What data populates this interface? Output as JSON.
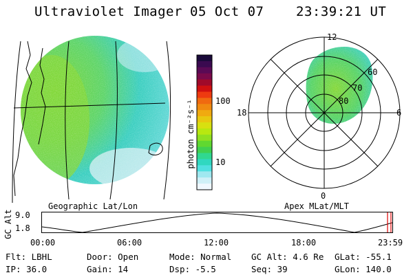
{
  "header": {
    "instrument": "Ultraviolet Imager",
    "date": "05 Oct 07",
    "time": "23:39:21 UT"
  },
  "colorbar": {
    "unit_label": "photon cm⁻²s⁻¹",
    "ticks": [
      "100",
      "10"
    ],
    "colors": [
      "#1a0a3a",
      "#3a0a50",
      "#5a0a55",
      "#7a0a4a",
      "#a00a2a",
      "#d01010",
      "#ee3a10",
      "#f06a10",
      "#f08a10",
      "#f0aa10",
      "#e8c810",
      "#d8e010",
      "#b8e810",
      "#90e020",
      "#60d830",
      "#40d050",
      "#30d890",
      "#30d8c0",
      "#50e0e0",
      "#a0e8f0",
      "#d0f0f8",
      "#f0f8ff"
    ]
  },
  "left_map": {
    "caption": "Geographic Lat/Lon"
  },
  "right_map": {
    "caption": "Apex MLat/MLT",
    "mlt_labels": {
      "top": "12",
      "left": "18",
      "right": "6",
      "bottom": "0"
    },
    "lat_labels": [
      "60",
      "70",
      "80"
    ]
  },
  "altitude_plot": {
    "ylabel": "GC Alt",
    "yticks": [
      "9.0",
      "1.8"
    ],
    "xticks": [
      "00:00",
      "06:00",
      "12:00",
      "18:00",
      "23:59"
    ],
    "marker_color": "#dd0000"
  },
  "status": {
    "filter": "Flt: LBHL",
    "door": "Door: Open",
    "mode": "Mode: Normal",
    "gc_alt": "GC Alt: 4.6 Re",
    "glat": "GLat: -55.1",
    "ip": "IP: 36.0",
    "gain": "Gain: 14",
    "dsp": "Dsp:   -5.5",
    "seq": "Seq: 39",
    "glon": "GLon: 140.0"
  }
}
